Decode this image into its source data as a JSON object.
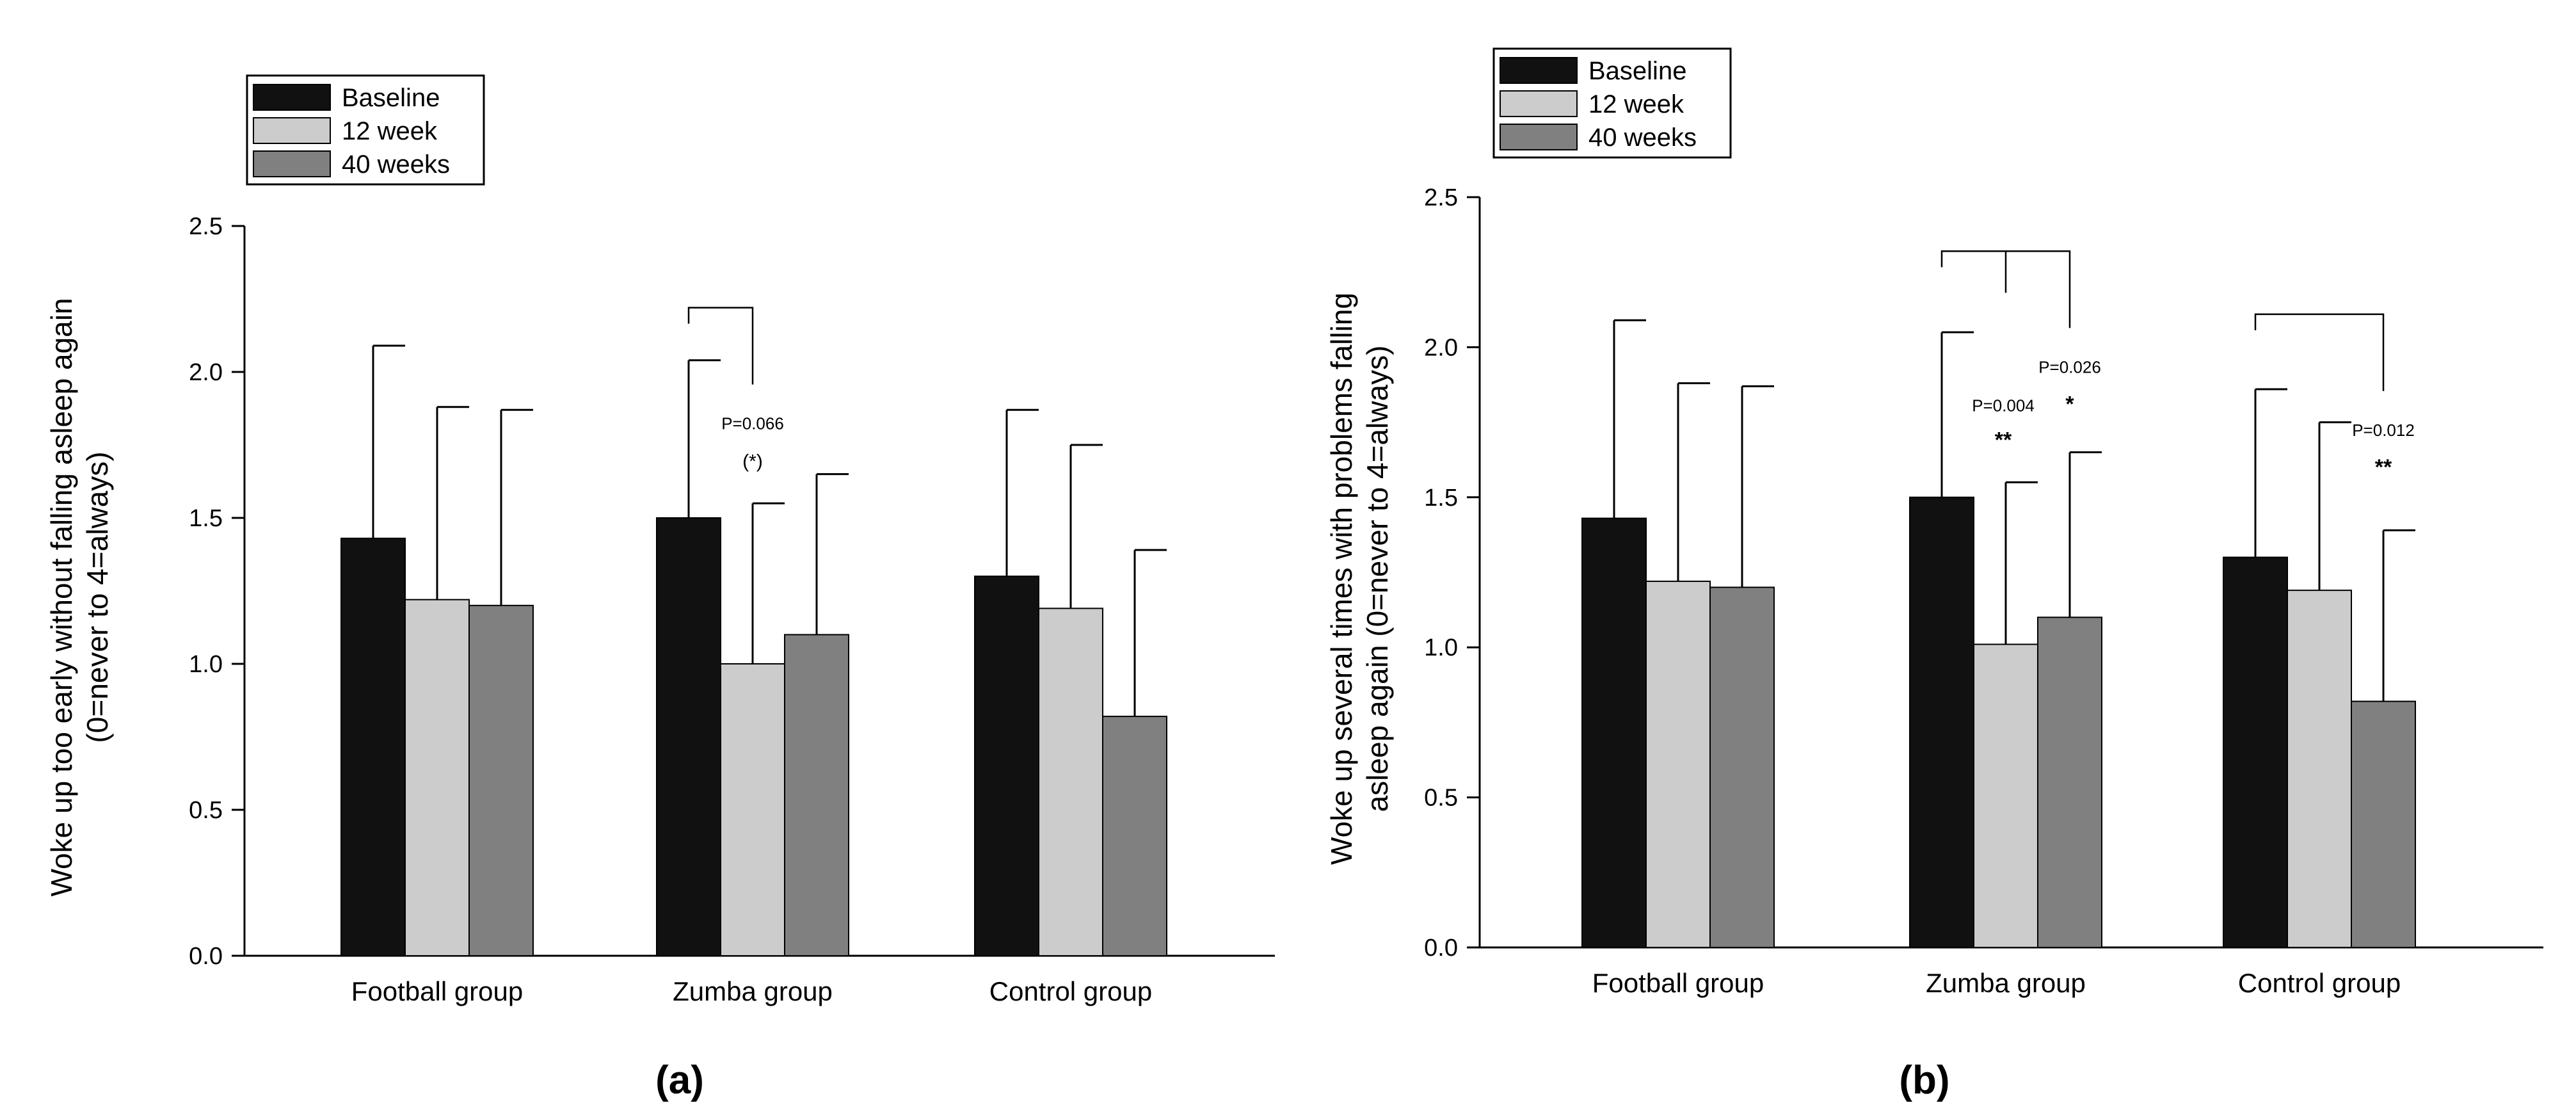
{
  "figure": {
    "colors": {
      "Baseline": "#111111",
      "12 week": "#cccccc",
      "40 weeks": "#808080"
    }
  },
  "chart_data": [
    {
      "id": "a",
      "type": "bar",
      "panel_label": "(a)",
      "title": "",
      "ylabel_line1": "Woke up too early without falling asleep again",
      "ylabel_line2": "(0=never to 4=always)",
      "ylim": [
        0,
        2.5
      ],
      "yticks": [
        0.0,
        0.5,
        1.0,
        1.5,
        2.0,
        2.5
      ],
      "ytick_labels": [
        "0.0",
        "0.5",
        "1.0",
        "1.5",
        "2.0",
        "2.5"
      ],
      "categories": [
        "Football group",
        "Zumba group",
        "Control group"
      ],
      "legend": {
        "placement": "top-left",
        "entries": [
          "Baseline",
          "12 week",
          "40 weeks"
        ]
      },
      "series": [
        {
          "name": "Baseline",
          "values": [
            1.43,
            1.5,
            1.3
          ],
          "errors": [
            0.66,
            0.54,
            0.57
          ]
        },
        {
          "name": "12 week",
          "values": [
            1.22,
            1.0,
            1.19
          ],
          "errors": [
            0.66,
            0.55,
            0.56
          ]
        },
        {
          "name": "40 weeks",
          "values": [
            1.2,
            1.1,
            0.82
          ],
          "errors": [
            0.67,
            0.55,
            0.57
          ]
        }
      ],
      "annotations": [
        {
          "category": 1,
          "from_series": 0,
          "to_series": 1,
          "text": "P=0.066",
          "stars": "(*)",
          "bracket_y": 2.22
        }
      ]
    },
    {
      "id": "b",
      "type": "bar",
      "panel_label": "(b)",
      "title": "",
      "ylabel_line1": "Woke up several times with problems falling",
      "ylabel_line2": "asleep again (0=never to 4=always)",
      "ylim": [
        0,
        2.5
      ],
      "yticks": [
        0.0,
        0.5,
        1.0,
        1.5,
        2.0,
        2.5
      ],
      "ytick_labels": [
        "0.0",
        "0.5",
        "1.0",
        "1.5",
        "2.0",
        "2.5"
      ],
      "categories": [
        "Football group",
        "Zumba group",
        "Control group"
      ],
      "legend": {
        "placement": "top-left",
        "entries": [
          "Baseline",
          "12 week",
          "40 weeks"
        ]
      },
      "series": [
        {
          "name": "Baseline",
          "values": [
            1.43,
            1.5,
            1.3
          ],
          "errors": [
            0.66,
            0.55,
            0.56
          ]
        },
        {
          "name": "12 week",
          "values": [
            1.22,
            1.01,
            1.19
          ],
          "errors": [
            0.66,
            0.54,
            0.56
          ]
        },
        {
          "name": "40 weeks",
          "values": [
            1.2,
            1.1,
            0.82
          ],
          "errors": [
            0.67,
            0.55,
            0.57
          ]
        }
      ],
      "annotations": [
        {
          "category": 1,
          "from_series": 0,
          "to_series": 2,
          "mid_series": 1,
          "text_mid": "P=0.004",
          "stars_mid": "**",
          "text": "P=0.026",
          "stars": "*",
          "bracket_y": 2.32
        },
        {
          "category": 2,
          "from_series": 0,
          "to_series": 2,
          "text": "P=0.012",
          "stars": "**",
          "bracket_y": 2.11
        }
      ]
    }
  ]
}
